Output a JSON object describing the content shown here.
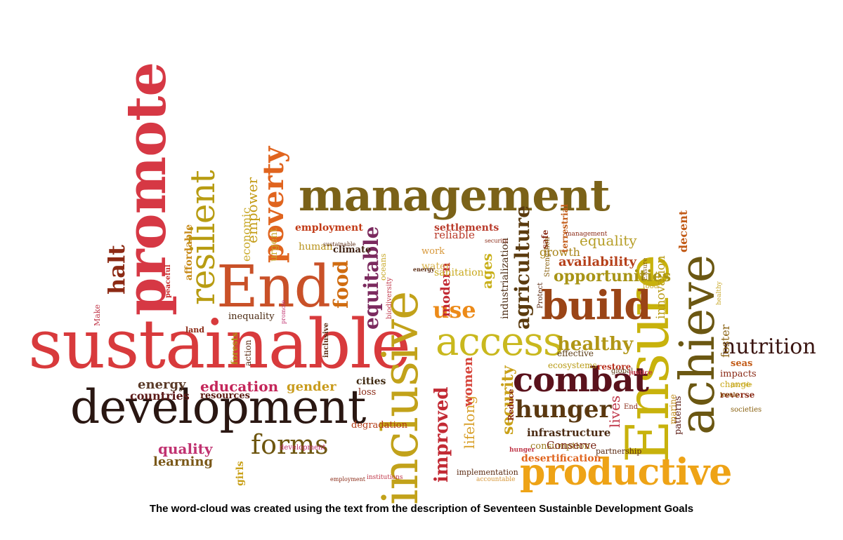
{
  "words": [
    {
      "text": "promote",
      "color": "#d63844"
    },
    {
      "text": "sustainable",
      "color": "#d83a3c"
    },
    {
      "text": "development",
      "color": "#2a1712"
    },
    {
      "text": "management",
      "color": "#7b6218"
    },
    {
      "text": "inclusive",
      "color": "#c2a21a"
    },
    {
      "text": "End",
      "color": "#c95128"
    },
    {
      "text": "Ensure",
      "color": "#c8b20c"
    },
    {
      "text": "achieve",
      "color": "#6b5712"
    },
    {
      "text": "access",
      "color": "#c9b81e"
    },
    {
      "text": "build",
      "color": "#9a4416"
    },
    {
      "text": "combat",
      "color": "#5a121c"
    },
    {
      "text": "productive",
      "color": "#eea316"
    },
    {
      "text": "hunger",
      "color": "#5a3810"
    },
    {
      "text": "resilient",
      "color": "#b89c12"
    },
    {
      "text": "poverty",
      "color": "#e0641e"
    },
    {
      "text": "halt",
      "color": "#8c2a14"
    },
    {
      "text": "nutrition",
      "color": "#3a1410"
    },
    {
      "text": "forms",
      "color": "#6e5610"
    },
    {
      "text": "healthy",
      "color": "#b19616"
    },
    {
      "text": "agriculture",
      "color": "#5a3a0e"
    },
    {
      "text": "improved",
      "color": "#c22a34"
    },
    {
      "text": "food",
      "color": "#d06c10"
    },
    {
      "text": "equitable",
      "color": "#7b2a5e"
    },
    {
      "text": "use",
      "color": "#ec8a18"
    },
    {
      "text": "opportunities",
      "color": "#a89416"
    },
    {
      "text": "availability",
      "color": "#b5401a"
    },
    {
      "text": "equality",
      "color": "#b69e28"
    },
    {
      "text": "education",
      "color": "#c4265a"
    },
    {
      "text": "energy",
      "color": "#5a3a28"
    },
    {
      "text": "countries",
      "color": "#5c1a18"
    },
    {
      "text": "quality",
      "color": "#c03270"
    },
    {
      "text": "learning",
      "color": "#7a5818"
    },
    {
      "text": "gender",
      "color": "#c99c1e"
    },
    {
      "text": "cities",
      "color": "#3e2810"
    },
    {
      "text": "employment",
      "color": "#c23a16"
    },
    {
      "text": "security",
      "color": "#c9a018"
    },
    {
      "text": "lifelong",
      "color": "#d8a02a"
    },
    {
      "text": "women",
      "color": "#d6443a"
    },
    {
      "text": "lives",
      "color": "#c0384a"
    },
    {
      "text": "infrastructure",
      "color": "#4a2a12"
    },
    {
      "text": "consumption",
      "color": "#9a7a1c"
    },
    {
      "text": "Conserve",
      "color": "#7a2616"
    },
    {
      "text": "desertification",
      "color": "#e0641e"
    },
    {
      "text": "patterns",
      "color": "#5a1a12"
    },
    {
      "text": "marine",
      "color": "#c08a18"
    },
    {
      "text": "foster",
      "color": "#8a6212"
    },
    {
      "text": "innovation",
      "color": "#b89a14"
    },
    {
      "text": "decent",
      "color": "#c25a16"
    },
    {
      "text": "growth",
      "color": "#a88418"
    },
    {
      "text": "reliable",
      "color": "#b93a2a"
    },
    {
      "text": "settlements",
      "color": "#b93a2a"
    },
    {
      "text": "work",
      "color": "#d8983a"
    },
    {
      "text": "modern",
      "color": "#c22a34"
    },
    {
      "text": "water",
      "color": "#d8b24a"
    },
    {
      "text": "sanitation",
      "color": "#c8a81c"
    },
    {
      "text": "ages",
      "color": "#c9b01a"
    },
    {
      "text": "industrialization",
      "color": "#4a2a12"
    },
    {
      "text": "empower",
      "color": "#c49c18"
    },
    {
      "text": "economic",
      "color": "#c8a828"
    },
    {
      "text": "urgent",
      "color": "#c8a828"
    },
    {
      "text": "affordable",
      "color": "#c88a18"
    },
    {
      "text": "peaceful",
      "color": "#c82a2a"
    },
    {
      "text": "inequality",
      "color": "#4a2a12"
    },
    {
      "text": "human",
      "color": "#b9941e"
    },
    {
      "text": "climate",
      "color": "#3e2010"
    },
    {
      "text": "action",
      "color": "#5a2a12"
    },
    {
      "text": "forests",
      "color": "#b39016"
    },
    {
      "text": "resources",
      "color": "#5a1a12"
    },
    {
      "text": "loss",
      "color": "#8a2a16"
    },
    {
      "text": "degradation",
      "color": "#b23a14"
    },
    {
      "text": "girls",
      "color": "#c9a018"
    },
    {
      "text": "implementation",
      "color": "#5a2a12"
    },
    {
      "text": "accountable",
      "color": "#d8983a"
    },
    {
      "text": "ecosystems",
      "color": "#b89a14"
    },
    {
      "text": "effective",
      "color": "#5a3a12"
    },
    {
      "text": "restore",
      "color": "#b9301e"
    },
    {
      "text": "impacts",
      "color": "#8a2a16"
    },
    {
      "text": "change",
      "color": "#c8a81c"
    },
    {
      "text": "reverse",
      "color": "#8a2a16"
    },
    {
      "text": "seas",
      "color": "#c25a16"
    },
    {
      "text": "terrestrial",
      "color": "#c25a16"
    },
    {
      "text": "safe",
      "color": "#8a2a16"
    },
    {
      "text": "Strengthen",
      "color": "#8a6212"
    },
    {
      "text": "Protect",
      "color": "#5a2a12"
    },
    {
      "text": "Reduce",
      "color": "#8a2a16"
    },
    {
      "text": "Make",
      "color": "#c0384a"
    },
    {
      "text": "land",
      "color": "#8a2a16"
    },
    {
      "text": "oceans",
      "color": "#c8a828"
    },
    {
      "text": "biodiversity",
      "color": "#c0384a"
    },
    {
      "text": "partnership",
      "color": "#5a2a12"
    },
    {
      "text": "global",
      "color": "#5a3a12"
    },
    {
      "text": "societies",
      "color": "#8a6212"
    },
    {
      "text": "levels",
      "color": "#8a6212"
    },
    {
      "text": "provide",
      "color": "#c8a81c"
    },
    {
      "text": "sustainable",
      "color": "#5a2a12"
    },
    {
      "text": "development",
      "color": "#c03270"
    },
    {
      "text": "employment",
      "color": "#8a2a16"
    },
    {
      "text": "institutions",
      "color": "#c0384a"
    },
    {
      "text": "inclusive",
      "color": "#5a2a12"
    },
    {
      "text": "hunger",
      "color": "#c0384a"
    },
    {
      "text": "End",
      "color": "#8a2a16"
    },
    {
      "text": "food",
      "color": "#c8a828"
    },
    {
      "text": "energy",
      "color": "#5a2a12"
    },
    {
      "text": "management",
      "color": "#8a2a16"
    },
    {
      "text": "security",
      "color": "#8a2a16"
    },
    {
      "text": "promote",
      "color": "#c03270"
    },
    {
      "text": "justice",
      "color": "#c0384a"
    },
    {
      "text": "healthy",
      "color": "#c8a828"
    },
    {
      "text": "Ensure",
      "color": "#8a6212"
    },
    {
      "text": "achieve",
      "color": "#5a2a12"
    }
  ],
  "caption": "The word-cloud was created using the text from the description of Seventeen Sustainble Development Goals"
}
